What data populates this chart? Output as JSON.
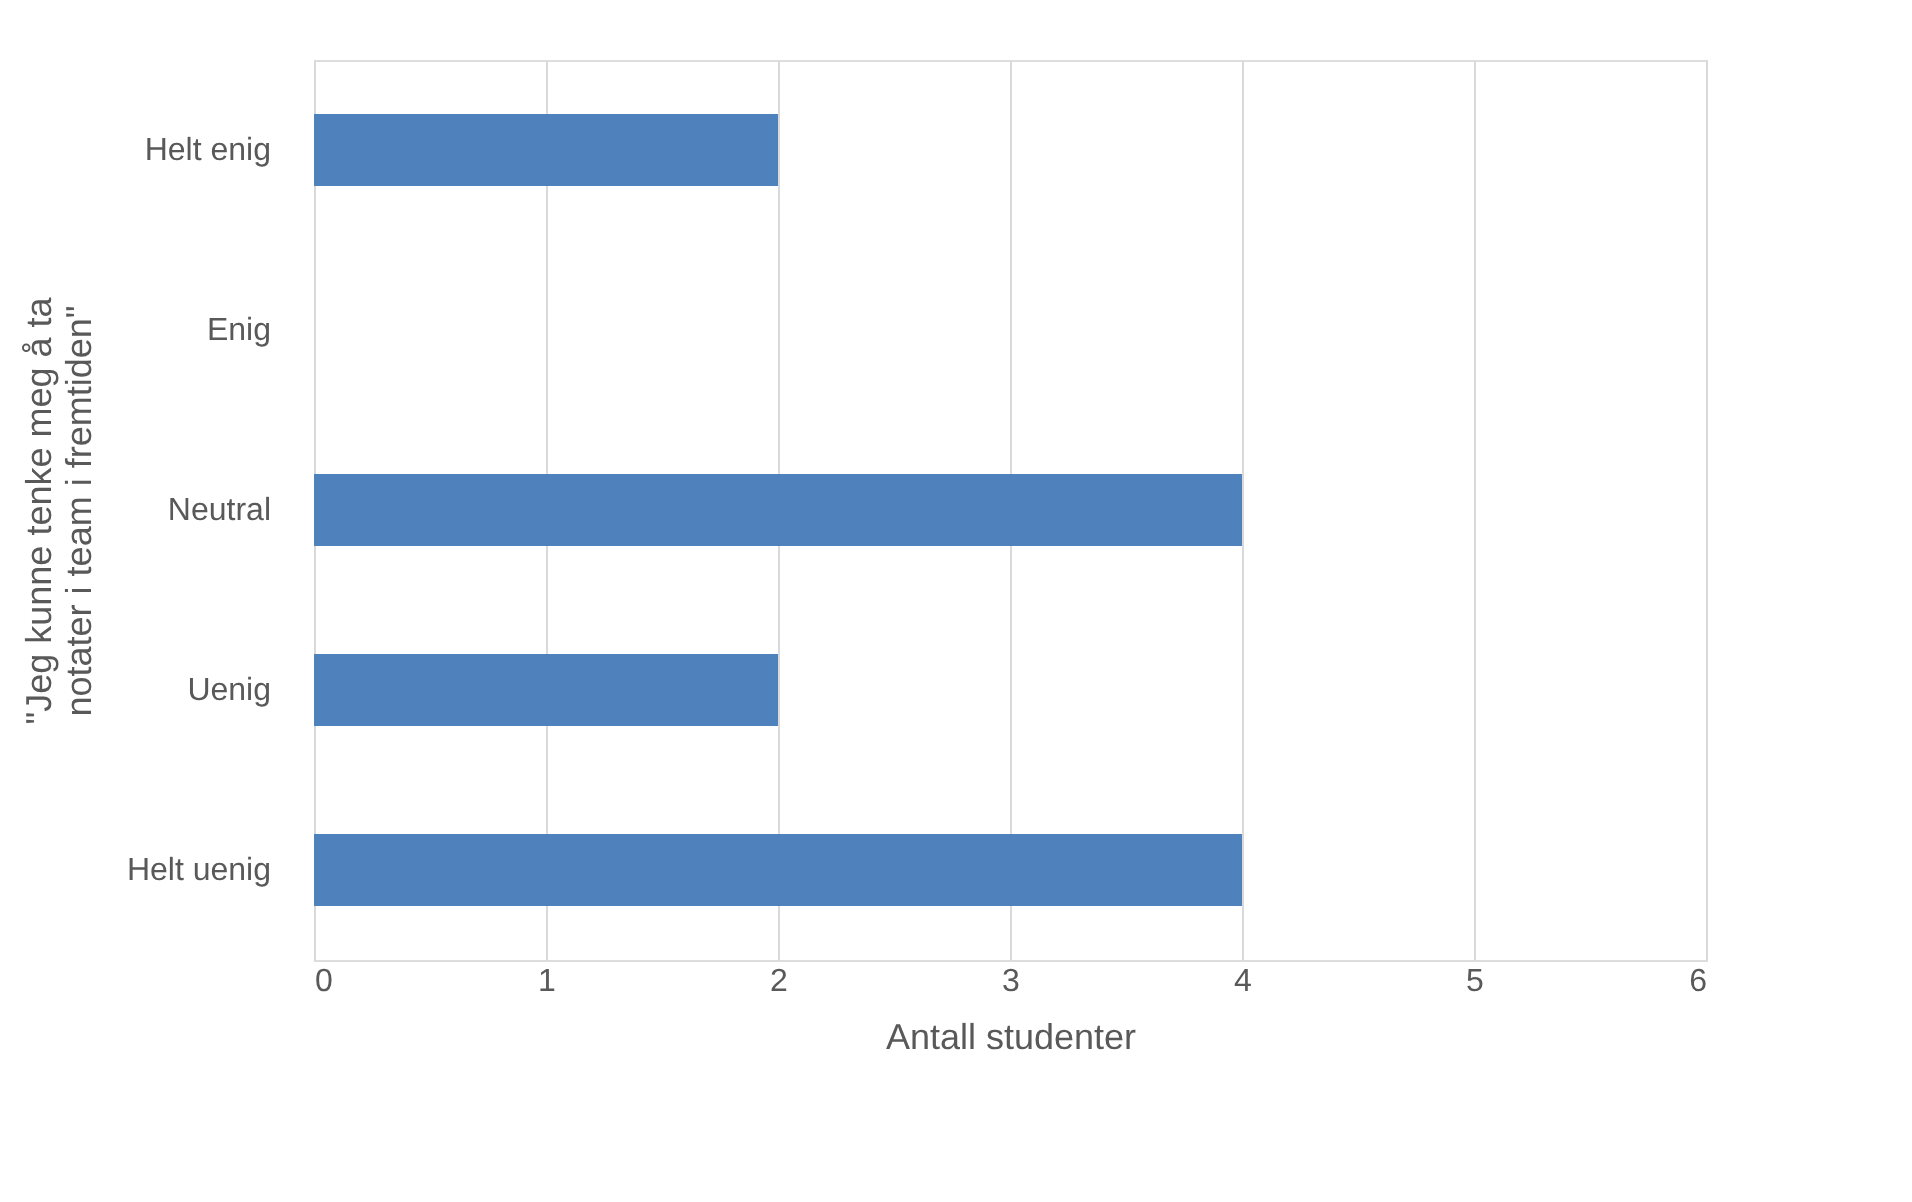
{
  "chart_data": {
    "type": "bar",
    "orientation": "horizontal",
    "categories": [
      "Helt enig",
      "Enig",
      "Neutral",
      "Uenig",
      "Helt uenig"
    ],
    "values": [
      2,
      0,
      4,
      2,
      4
    ],
    "color": "#4f81bd",
    "xlim": [
      0,
      6
    ],
    "xticks": [
      0,
      1,
      2,
      3,
      4,
      5,
      6
    ],
    "grid": "x",
    "xlabel": "Antall studenter",
    "ylabel": "\"Jeg kunne tenke meg å ta notater i team i fremtiden\""
  }
}
